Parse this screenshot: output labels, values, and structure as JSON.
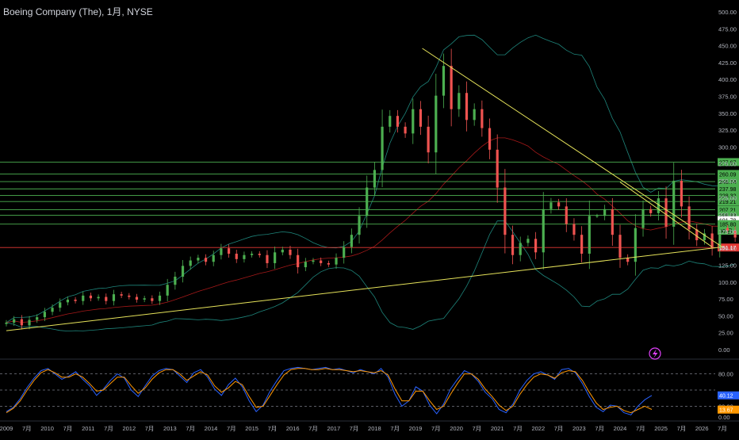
{
  "chart": {
    "title": "Boeing Company (The), 1月, NYSE"
  },
  "colors": {
    "bg": "#000000",
    "up": "#26a69a",
    "upBright": "#4caf50",
    "down": "#ef5350",
    "bbColor": "#26a69a",
    "bbMid": "#b71c1c",
    "trend": "#e6e35a",
    "levelGreen": "#4caf50",
    "levelRed": "#e53935",
    "stochK": "#2962ff",
    "stochD": "#ff9800"
  },
  "icons": {
    "flash": "lightning-icon"
  },
  "chart_data": [
    {
      "type": "candlestick",
      "xaxis_labels": [
        "2009",
        "7月",
        "2010",
        "7月",
        "2011",
        "7月",
        "2012",
        "7月",
        "2013",
        "7月",
        "2014",
        "7月",
        "2015",
        "7月",
        "2016",
        "7月",
        "2017",
        "7月",
        "2018",
        "7月",
        "2019",
        "7月",
        "2020",
        "7月",
        "2021",
        "7月",
        "2022",
        "7月",
        "2023",
        "7月",
        "2024",
        "7月",
        "2025",
        "7月",
        "2026",
        "7月"
      ],
      "yaxis_ticks": [
        "500.00",
        "475.00",
        "450.00",
        "425.00",
        "400.00",
        "375.00",
        "350.00",
        "325.00",
        "300.00",
        "275.00",
        "250.00",
        "225.00",
        "200.00",
        "175.00",
        "150.00",
        "125.00",
        "100.00",
        "75.00",
        "50.00",
        "25.00",
        "0.00"
      ],
      "ylim": [
        0,
        500
      ],
      "price_levels": [
        {
          "label": "277.67",
          "value": 277.67,
          "kind": "green"
        },
        {
          "label": "260.09",
          "value": 260.09,
          "kind": "green"
        },
        {
          "label": "248.74",
          "value": 248.74,
          "kind": "green"
        },
        {
          "label": "237.98",
          "value": 237.98,
          "kind": "green"
        },
        {
          "label": "228.32",
          "value": 228.32,
          "kind": "green"
        },
        {
          "label": "219.21",
          "value": 219.21,
          "kind": "green"
        },
        {
          "label": "207.21",
          "value": 207.21,
          "kind": "green"
        },
        {
          "label": "198.83",
          "value": 198.83,
          "kind": "green"
        },
        {
          "label": "191.78",
          "value": 191.78,
          "kind": "white"
        },
        {
          "label": "185.80",
          "value": 185.8,
          "kind": "green"
        },
        {
          "label": "90 日",
          "value": 176,
          "kind": "green"
        },
        {
          "label": "151.17",
          "value": 151.17,
          "kind": "red"
        }
      ],
      "monthly_closes": [
        40,
        45,
        36,
        44,
        48,
        56,
        62,
        70,
        74,
        72,
        80,
        76,
        78,
        72,
        82,
        80,
        78,
        74,
        76,
        72,
        80,
        96,
        108,
        124,
        132,
        136,
        130,
        140,
        150,
        142,
        134,
        140,
        142,
        140,
        128,
        144,
        148,
        140,
        122,
        130,
        132,
        128,
        126,
        136,
        152,
        170,
        198,
        240,
        266,
        330,
        346,
        330,
        320,
        356,
        330,
        292,
        376,
        420,
        356,
        380,
        340,
        356,
        328,
        296,
        240,
        170,
        140,
        158,
        164,
        144,
        208,
        218,
        212,
        186,
        170,
        142,
        198,
        198,
        208,
        170,
        136,
        130,
        180,
        208,
        202,
        224,
        182,
        250,
        212,
        178,
        162,
        172,
        150,
        180,
        176,
        166
      ],
      "trendlines": [
        {
          "from": [
            "2009-01",
            28
          ],
          "to": [
            "2026-07",
            152
          ]
        },
        {
          "from": [
            "2019-03",
            446
          ],
          "to": [
            "2026-07",
            152
          ]
        },
        {
          "from": [
            "2024-01",
            248
          ],
          "to": [
            "2026-04",
            152
          ]
        }
      ]
    },
    {
      "type": "line",
      "name": "stochastic",
      "yaxis_ticks": [
        "80.00",
        "20.00",
        "0.00"
      ],
      "ylim": [
        0,
        100
      ],
      "reference_lines": [
        80,
        50,
        20
      ],
      "readouts": [
        {
          "label": "40.12",
          "value": 40.12
        },
        {
          "label": "13.67",
          "value": 13.67
        }
      ],
      "series": [
        {
          "values": [
            10,
            18,
            34,
            55,
            72,
            86,
            90,
            80,
            70,
            76,
            84,
            70,
            58,
            40,
            52,
            68,
            80,
            72,
            50,
            38,
            58,
            76,
            86,
            90,
            88,
            76,
            64,
            82,
            88,
            74,
            52,
            40,
            60,
            72,
            56,
            30,
            10,
            22,
            48,
            68,
            86,
            90,
            92,
            90,
            88,
            90,
            92,
            88,
            90,
            86,
            82,
            88,
            84,
            80,
            90,
            74,
            42,
            20,
            30,
            56,
            48,
            22,
            6,
            24,
            52,
            70,
            86,
            80,
            66,
            46,
            34,
            14,
            8,
            24,
            50,
            68,
            80,
            84,
            78,
            70,
            88,
            90,
            82,
            62,
            38,
            18,
            10,
            22,
            20,
            8,
            4,
            20,
            32,
            40
          ]
        },
        {
          "values": [
            8,
            16,
            30,
            50,
            68,
            82,
            88,
            82,
            74,
            74,
            80,
            74,
            62,
            48,
            50,
            62,
            74,
            74,
            58,
            44,
            54,
            70,
            82,
            88,
            88,
            80,
            68,
            76,
            84,
            78,
            58,
            46,
            54,
            66,
            60,
            38,
            18,
            20,
            40,
            60,
            78,
            88,
            90,
            90,
            88,
            88,
            90,
            88,
            88,
            86,
            84,
            86,
            84,
            82,
            86,
            78,
            52,
            30,
            30,
            48,
            48,
            30,
            14,
            20,
            42,
            62,
            80,
            80,
            70,
            52,
            38,
            22,
            12,
            20,
            42,
            60,
            74,
            80,
            78,
            72,
            82,
            86,
            84,
            68,
            46,
            26,
            14,
            18,
            20,
            12,
            8,
            14,
            20,
            14
          ]
        }
      ]
    }
  ]
}
